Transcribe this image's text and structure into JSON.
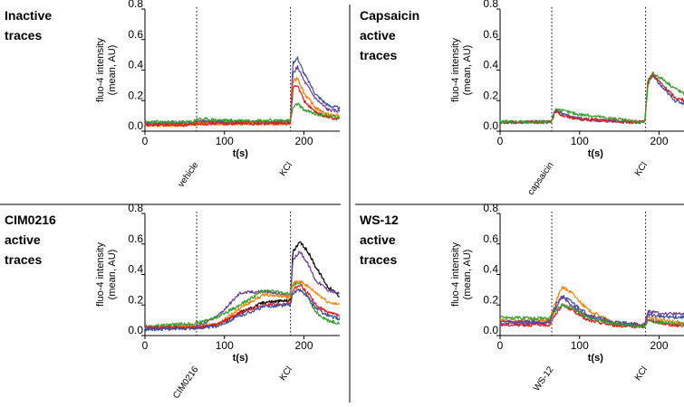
{
  "chart_data": [
    {
      "type": "line",
      "title_lines": [
        "Inactive",
        "traces"
      ],
      "ylabel_lines": [
        "fluo-4 intensity",
        "(mean, AU)"
      ],
      "xlabel": "t(s)",
      "xlim": [
        0,
        245
      ],
      "ylim": [
        0.0,
        0.8
      ],
      "xticks": [
        "0",
        "100",
        "200"
      ],
      "yticks": [
        "0.0",
        "0.2",
        "0.4",
        "0.6",
        "0.8"
      ],
      "grid": false,
      "annotations": [
        {
          "label": "vehicle",
          "x": 65
        },
        {
          "label": "KCl",
          "x": 183
        }
      ],
      "series": [
        {
          "color": "#3a4fa0",
          "x": [
            0,
            60,
            65,
            100,
            150,
            183,
            186,
            192,
            200,
            215,
            230,
            245
          ],
          "y": [
            0.05,
            0.05,
            0.06,
            0.06,
            0.06,
            0.06,
            0.45,
            0.48,
            0.38,
            0.24,
            0.17,
            0.15
          ]
        },
        {
          "color": "#6a3d9a",
          "x": [
            0,
            60,
            65,
            100,
            150,
            183,
            186,
            192,
            200,
            215,
            230,
            245
          ],
          "y": [
            0.05,
            0.05,
            0.06,
            0.06,
            0.06,
            0.06,
            0.38,
            0.42,
            0.33,
            0.21,
            0.14,
            0.13
          ]
        },
        {
          "color": "#ff7f00",
          "x": [
            0,
            60,
            65,
            100,
            150,
            183,
            186,
            192,
            200,
            215,
            230,
            245
          ],
          "y": [
            0.04,
            0.04,
            0.05,
            0.05,
            0.05,
            0.05,
            0.32,
            0.35,
            0.25,
            0.15,
            0.11,
            0.1
          ]
        },
        {
          "color": "#e31a1c",
          "x": [
            0,
            60,
            65,
            100,
            150,
            183,
            186,
            192,
            200,
            215,
            230,
            245
          ],
          "y": [
            0.04,
            0.04,
            0.05,
            0.05,
            0.05,
            0.05,
            0.28,
            0.3,
            0.2,
            0.12,
            0.09,
            0.08
          ]
        },
        {
          "color": "#33a02c",
          "x": [
            0,
            60,
            65,
            100,
            150,
            183,
            186,
            192,
            200,
            215,
            230,
            245
          ],
          "y": [
            0.06,
            0.06,
            0.08,
            0.07,
            0.07,
            0.07,
            0.15,
            0.18,
            0.14,
            0.11,
            0.1,
            0.09
          ]
        }
      ]
    },
    {
      "type": "line",
      "title_lines": [
        "Capsaicin",
        "active",
        "traces"
      ],
      "ylabel_lines": [
        "fluo-4 intensity",
        "(mean, AU)"
      ],
      "xlabel": "t(s)",
      "xlim": [
        0,
        245
      ],
      "ylim": [
        0.0,
        0.8
      ],
      "xticks": [
        "0",
        "100",
        "200"
      ],
      "yticks": [
        "0.0",
        "0.2",
        "0.4",
        "0.6",
        "0.8"
      ],
      "grid": false,
      "annotations": [
        {
          "label": "capsaicin",
          "x": 65
        },
        {
          "label": "KCl",
          "x": 183
        }
      ],
      "series": [
        {
          "color": "#3a4fa0",
          "x": [
            0,
            64,
            70,
            80,
            100,
            130,
            160,
            182,
            186,
            192,
            205,
            220,
            245
          ],
          "y": [
            0.06,
            0.06,
            0.14,
            0.11,
            0.08,
            0.07,
            0.06,
            0.06,
            0.33,
            0.36,
            0.28,
            0.2,
            0.16
          ]
        },
        {
          "color": "#e31a1c",
          "x": [
            0,
            64,
            70,
            80,
            100,
            130,
            160,
            182,
            186,
            192,
            205,
            220,
            245
          ],
          "y": [
            0.06,
            0.06,
            0.13,
            0.1,
            0.08,
            0.07,
            0.06,
            0.06,
            0.34,
            0.37,
            0.3,
            0.22,
            0.18
          ]
        },
        {
          "color": "#33a02c",
          "x": [
            0,
            64,
            70,
            80,
            100,
            130,
            160,
            182,
            186,
            192,
            205,
            220,
            245
          ],
          "y": [
            0.06,
            0.06,
            0.15,
            0.13,
            0.11,
            0.09,
            0.07,
            0.06,
            0.3,
            0.38,
            0.34,
            0.28,
            0.2
          ]
        }
      ]
    },
    {
      "type": "line",
      "title_lines": [
        "CIM0216",
        "active",
        "traces"
      ],
      "ylabel_lines": [
        "fluo-4 intensity",
        "(mean, AU)"
      ],
      "xlabel": "t(s)",
      "xlim": [
        0,
        245
      ],
      "ylim": [
        0.0,
        0.8
      ],
      "xticks": [
        "0",
        "100",
        "200"
      ],
      "yticks": [
        "0.0",
        "0.2",
        "0.4",
        "0.6",
        "0.8"
      ],
      "grid": false,
      "annotations": [
        {
          "label": "CIM0216",
          "x": 65
        },
        {
          "label": "KCl",
          "x": 183
        }
      ],
      "series": [
        {
          "color": "#000000",
          "x": [
            0,
            65,
            90,
            120,
            150,
            183,
            186,
            195,
            205,
            215,
            230,
            245
          ],
          "y": [
            0.05,
            0.06,
            0.07,
            0.15,
            0.22,
            0.23,
            0.55,
            0.61,
            0.55,
            0.45,
            0.32,
            0.26
          ]
        },
        {
          "color": "#6a3d9a",
          "x": [
            0,
            65,
            90,
            120,
            150,
            183,
            186,
            195,
            205,
            215,
            230,
            245
          ],
          "y": [
            0.05,
            0.06,
            0.12,
            0.28,
            0.29,
            0.26,
            0.5,
            0.55,
            0.47,
            0.36,
            0.3,
            0.27
          ]
        },
        {
          "color": "#33a02c",
          "x": [
            0,
            65,
            90,
            120,
            150,
            183,
            186,
            195,
            205,
            215,
            230,
            245
          ],
          "y": [
            0.06,
            0.08,
            0.12,
            0.2,
            0.3,
            0.27,
            0.33,
            0.35,
            0.25,
            0.15,
            0.1,
            0.08
          ]
        },
        {
          "color": "#ff7f00",
          "x": [
            0,
            65,
            90,
            120,
            150,
            183,
            186,
            195,
            205,
            215,
            230,
            245
          ],
          "y": [
            0.05,
            0.06,
            0.07,
            0.18,
            0.27,
            0.25,
            0.34,
            0.36,
            0.32,
            0.28,
            0.22,
            0.2
          ]
        },
        {
          "color": "#e31a1c",
          "x": [
            0,
            65,
            90,
            120,
            150,
            183,
            186,
            195,
            205,
            215,
            230,
            245
          ],
          "y": [
            0.05,
            0.05,
            0.07,
            0.15,
            0.2,
            0.21,
            0.3,
            0.33,
            0.28,
            0.2,
            0.15,
            0.13
          ]
        },
        {
          "color": "#3a4fa0",
          "x": [
            0,
            65,
            90,
            120,
            150,
            183,
            186,
            195,
            205,
            215,
            230,
            245
          ],
          "y": [
            0.04,
            0.05,
            0.06,
            0.13,
            0.19,
            0.2,
            0.28,
            0.3,
            0.25,
            0.18,
            0.13,
            0.11
          ]
        }
      ]
    },
    {
      "type": "line",
      "title_lines": [
        "WS-12",
        "active",
        "traces"
      ],
      "ylabel_lines": [
        "fluo-4 intensity",
        "(mean, AU)"
      ],
      "xlabel": "t(s)",
      "xlim": [
        0,
        245
      ],
      "ylim": [
        0.0,
        0.8
      ],
      "xticks": [
        "0",
        "100",
        "200"
      ],
      "yticks": [
        "0.0",
        "0.2",
        "0.4",
        "0.6",
        "0.8"
      ],
      "grid": false,
      "annotations": [
        {
          "label": "WS-12",
          "x": 65
        },
        {
          "label": "KCl",
          "x": 183
        }
      ],
      "series": [
        {
          "color": "#ff7f00",
          "x": [
            0,
            62,
            70,
            78,
            90,
            110,
            140,
            160,
            182,
            186,
            195,
            215,
            245
          ],
          "y": [
            0.1,
            0.1,
            0.22,
            0.32,
            0.28,
            0.17,
            0.09,
            0.07,
            0.06,
            0.12,
            0.11,
            0.09,
            0.08
          ]
        },
        {
          "color": "#3a4fa0",
          "x": [
            0,
            62,
            70,
            78,
            90,
            110,
            140,
            160,
            182,
            186,
            195,
            215,
            245
          ],
          "y": [
            0.09,
            0.09,
            0.2,
            0.26,
            0.22,
            0.14,
            0.09,
            0.08,
            0.07,
            0.14,
            0.13,
            0.12,
            0.12
          ]
        },
        {
          "color": "#6a3d9a",
          "x": [
            0,
            62,
            70,
            78,
            90,
            110,
            140,
            160,
            182,
            186,
            195,
            215,
            245
          ],
          "y": [
            0.08,
            0.08,
            0.18,
            0.25,
            0.2,
            0.13,
            0.08,
            0.07,
            0.07,
            0.16,
            0.15,
            0.14,
            0.14
          ]
        },
        {
          "color": "#e31a1c",
          "x": [
            0,
            62,
            70,
            78,
            90,
            110,
            140,
            160,
            182,
            186,
            195,
            215,
            245
          ],
          "y": [
            0.07,
            0.07,
            0.14,
            0.2,
            0.17,
            0.1,
            0.07,
            0.06,
            0.06,
            0.1,
            0.09,
            0.07,
            0.06
          ]
        },
        {
          "color": "#33a02c",
          "x": [
            0,
            62,
            70,
            78,
            90,
            110,
            140,
            160,
            182,
            186,
            195,
            215,
            245
          ],
          "y": [
            0.12,
            0.11,
            0.16,
            0.2,
            0.18,
            0.12,
            0.08,
            0.07,
            0.06,
            0.1,
            0.09,
            0.08,
            0.07
          ]
        }
      ]
    }
  ]
}
